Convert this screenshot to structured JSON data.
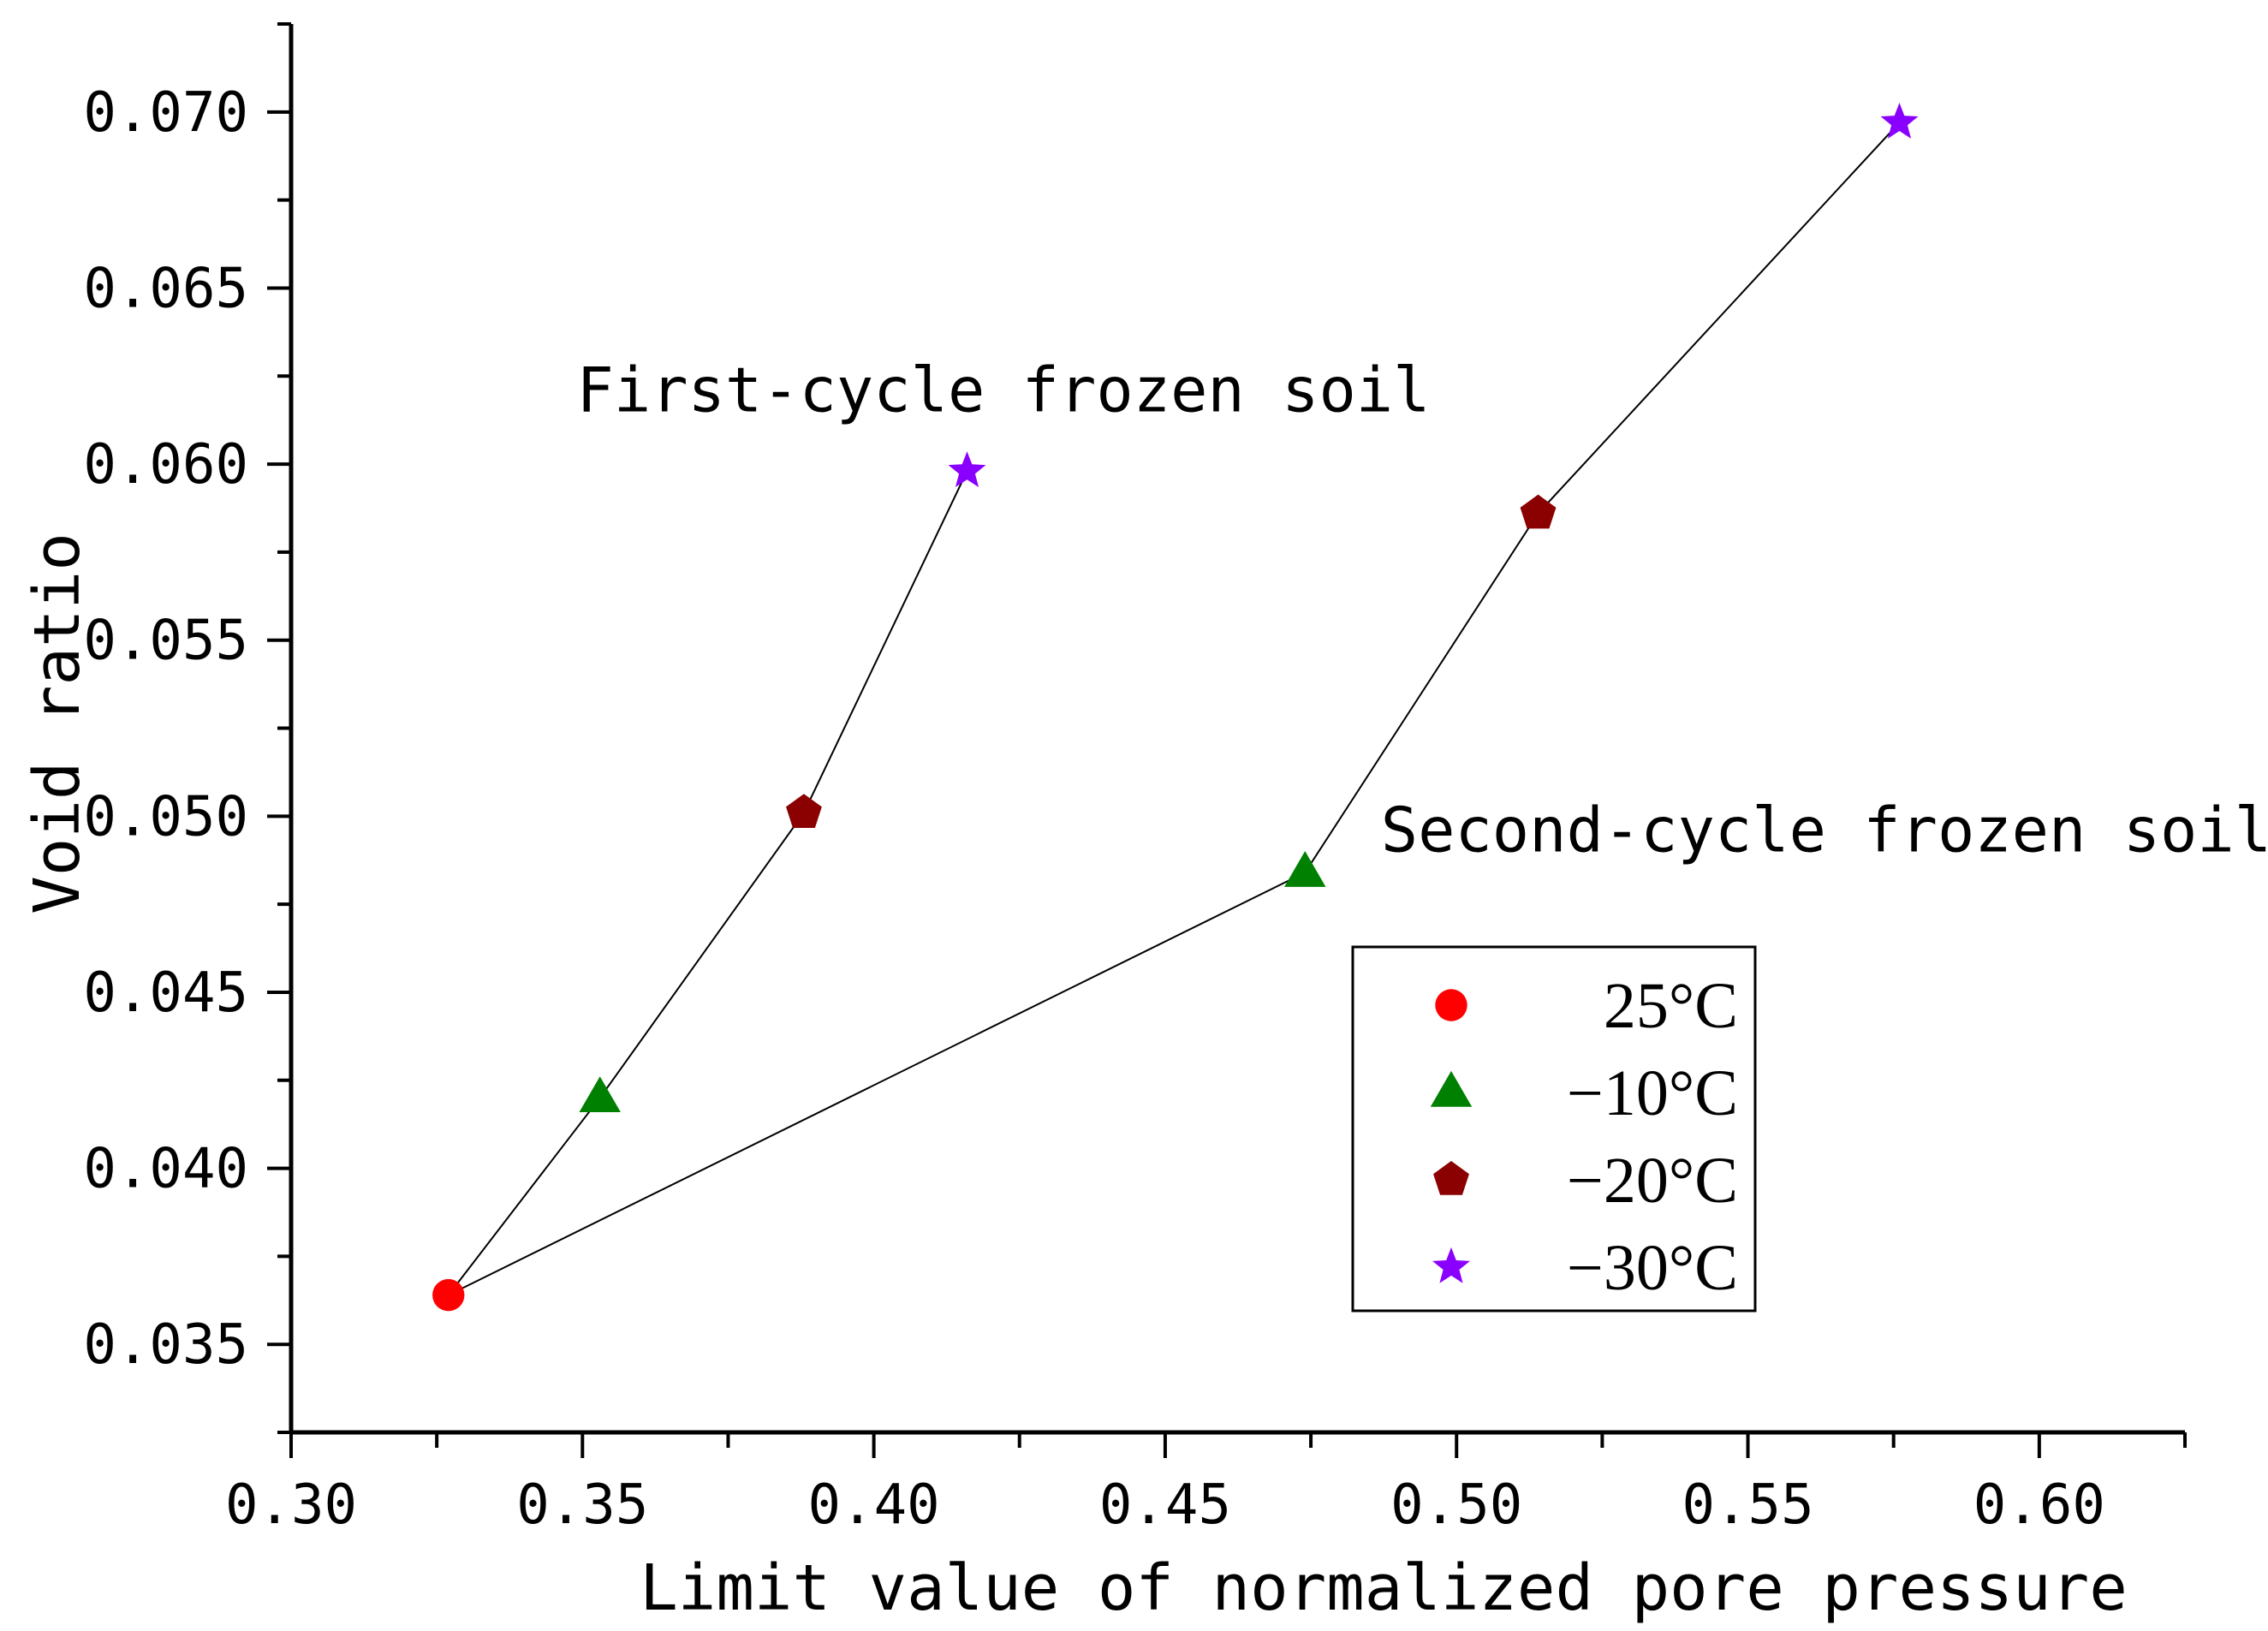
{
  "chart_data": {
    "type": "scatter",
    "xlabel": "Limit value of normalized pore pressure",
    "ylabel": "Void ratio",
    "xlim": [
      0.3,
      0.625
    ],
    "ylim": [
      0.0325,
      0.0725
    ],
    "x_ticks": [
      "0.30",
      "0.35",
      "0.40",
      "0.45",
      "0.50",
      "0.55",
      "0.60"
    ],
    "y_ticks": [
      "0.035",
      "0.040",
      "0.045",
      "0.050",
      "0.055",
      "0.060",
      "0.065",
      "0.070"
    ],
    "x_tick_values": [
      0.3,
      0.35,
      0.4,
      0.45,
      0.5,
      0.55,
      0.6
    ],
    "y_tick_values": [
      0.035,
      0.04,
      0.045,
      0.05,
      0.055,
      0.06,
      0.065,
      0.07
    ],
    "grid": false,
    "legend_position": "lower-right",
    "markers": {
      "25°C": {
        "shape": "circle",
        "color": "#ff0000"
      },
      "−10°C": {
        "shape": "triangle",
        "color": "#008000"
      },
      "−20°C": {
        "shape": "pentagon",
        "color": "#8b0000"
      },
      "−30°C": {
        "shape": "star",
        "color": "#8a00ff"
      }
    },
    "legend": [
      {
        "label": "25°C",
        "marker": "circle",
        "color": "#ff0000"
      },
      {
        "label": "−10°C",
        "marker": "triangle",
        "color": "#008000"
      },
      {
        "label": "−20°C",
        "marker": "pentagon",
        "color": "#8b0000"
      },
      {
        "label": "−30°C",
        "marker": "star",
        "color": "#8a00ff"
      }
    ],
    "series": [
      {
        "name": "First-cycle frozen soil",
        "points": [
          {
            "temp": "25°C",
            "x": 0.327,
            "y": 0.0364
          },
          {
            "temp": "−10°C",
            "x": 0.353,
            "y": 0.042
          },
          {
            "temp": "−20°C",
            "x": 0.388,
            "y": 0.0501
          },
          {
            "temp": "−30°C",
            "x": 0.416,
            "y": 0.0598
          }
        ]
      },
      {
        "name": "Second-cycle frozen soil",
        "points": [
          {
            "temp": "25°C",
            "x": 0.327,
            "y": 0.0364
          },
          {
            "temp": "−10°C",
            "x": 0.474,
            "y": 0.0484
          },
          {
            "temp": "−20°C",
            "x": 0.514,
            "y": 0.0586
          },
          {
            "temp": "−30°C",
            "x": 0.576,
            "y": 0.0697
          }
        ]
      }
    ],
    "annotations": [
      {
        "text": "First-cycle frozen soil",
        "x": 0.349,
        "y": 0.0615
      },
      {
        "text": "Second-cycle frozen soil",
        "x": 0.487,
        "y": 0.049
      }
    ]
  }
}
